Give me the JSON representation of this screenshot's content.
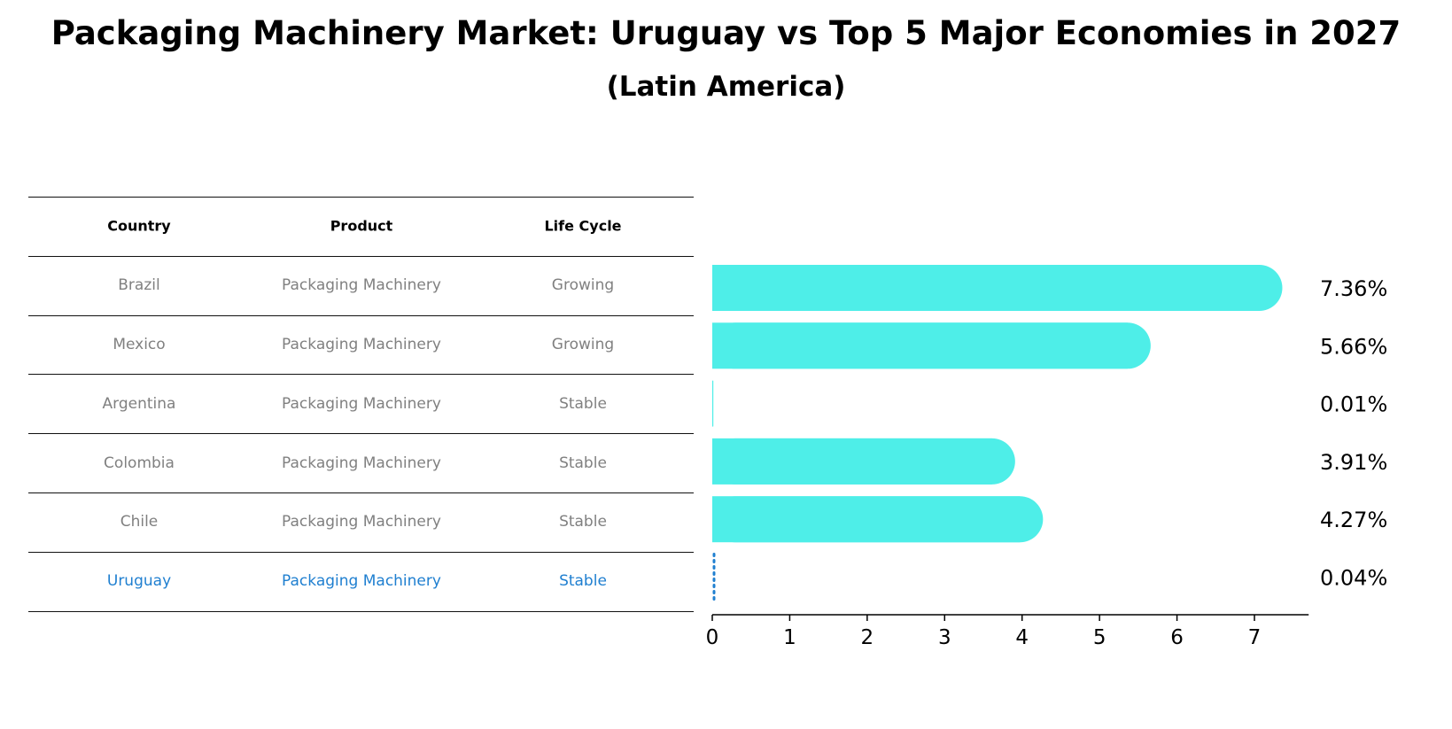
{
  "chart_data": {
    "type": "bar",
    "orientation": "horizontal",
    "title": "Packaging Machinery Market: Uruguay vs Top 5 Major Economies in 2027",
    "subtitle": "(Latin America)",
    "table_headers": [
      "Country",
      "Product",
      "Life Cycle"
    ],
    "rows": [
      {
        "country": "Brazil",
        "product": "Packaging Machinery",
        "life_cycle": "Growing",
        "value": 7.36,
        "label": "7.36%"
      },
      {
        "country": "Mexico",
        "product": "Packaging Machinery",
        "life_cycle": "Growing",
        "value": 5.66,
        "label": "5.66%"
      },
      {
        "country": "Argentina",
        "product": "Packaging Machinery",
        "life_cycle": "Stable",
        "value": 0.01,
        "label": "0.01%"
      },
      {
        "country": "Colombia",
        "product": "Packaging Machinery",
        "life_cycle": "Stable",
        "value": 3.91,
        "label": "3.91%"
      },
      {
        "country": "Chile",
        "product": "Packaging Machinery",
        "life_cycle": "Stable",
        "value": 4.27,
        "label": "4.27%"
      },
      {
        "country": "Uruguay",
        "product": "Packaging Machinery",
        "life_cycle": "Stable",
        "value": 0.04,
        "label": "0.04%"
      }
    ],
    "highlight_country": "Uruguay",
    "x_ticks": [
      0,
      1,
      2,
      3,
      4,
      5,
      6,
      7
    ],
    "xlim": [
      0,
      7.7
    ],
    "grid": false,
    "colors": {
      "bar": "#4eeee8",
      "highlight_bar": "#1f7fd0",
      "highlight_text": "#1f7fd0",
      "row_text": "#808080"
    }
  }
}
